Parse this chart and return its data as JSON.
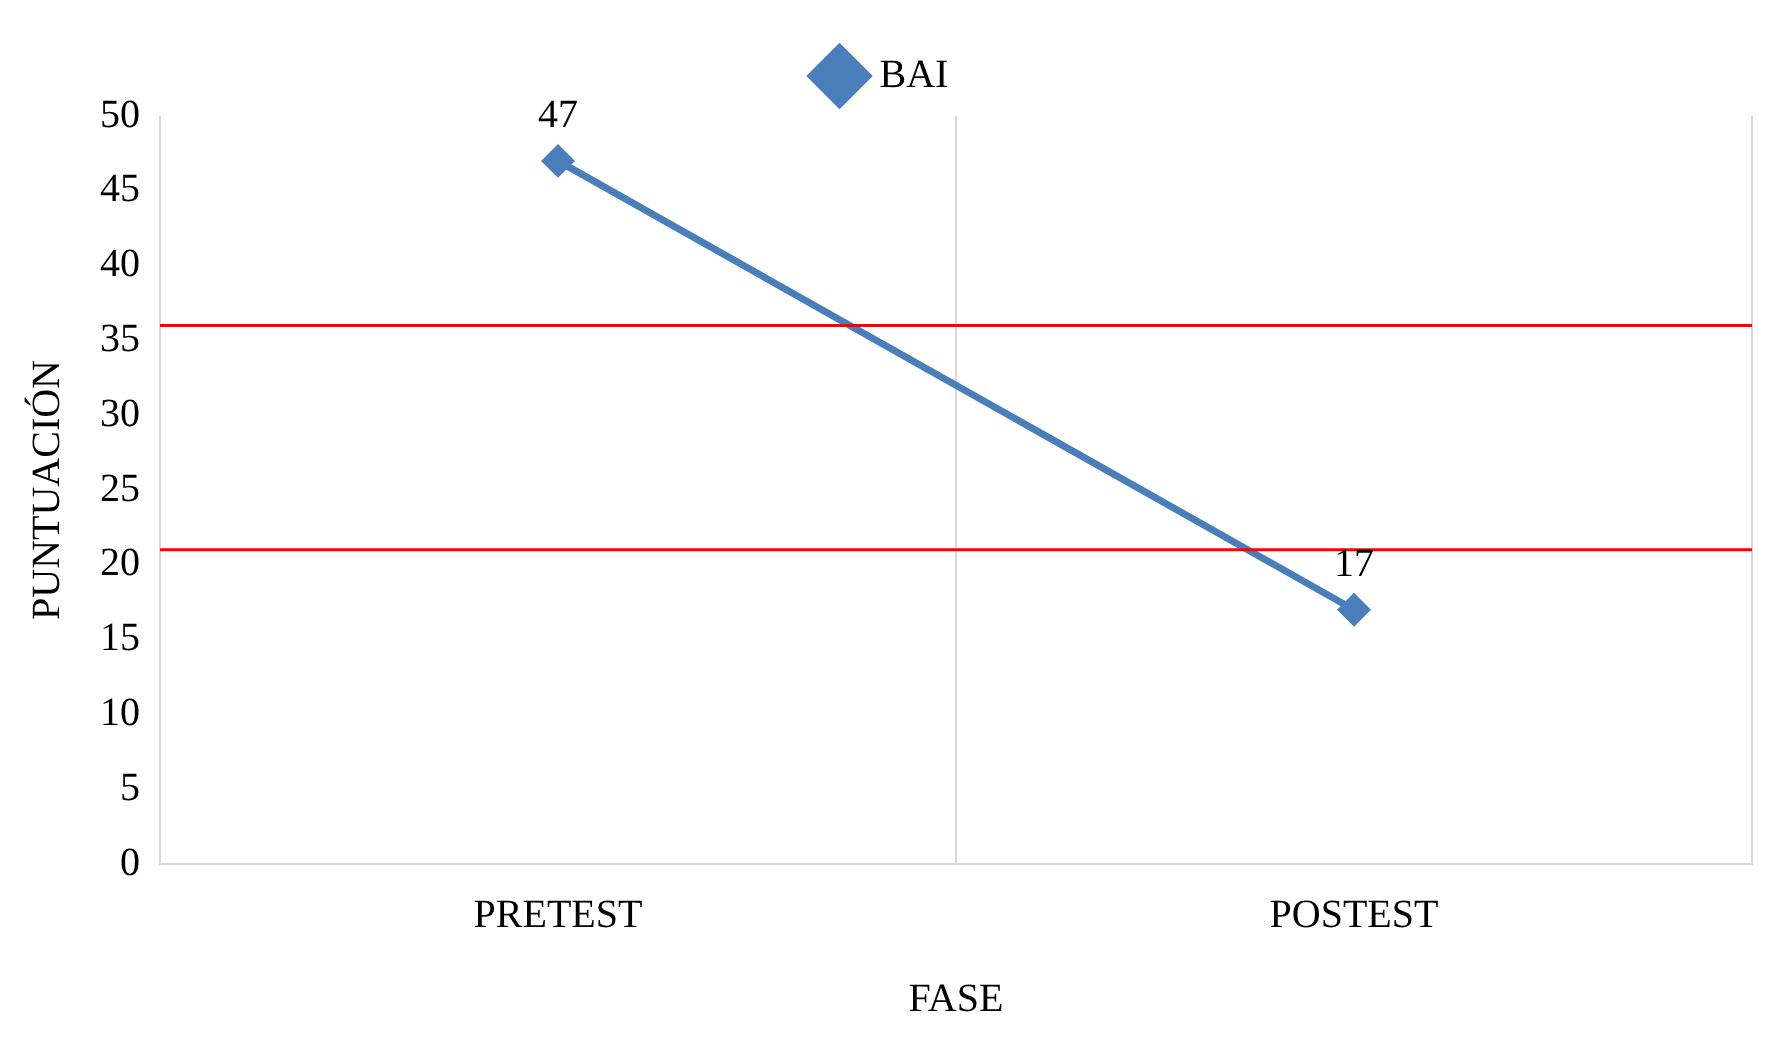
{
  "chart_data": {
    "type": "line",
    "xlabel": "FASE",
    "ylabel": "PUNTUACIÓN",
    "categories": [
      "PRETEST",
      "POSTEST"
    ],
    "series": [
      {
        "name": "BAI",
        "color": "#4a7ebb",
        "values": [
          47,
          17
        ]
      }
    ],
    "ylim": [
      0,
      50
    ],
    "yticks": [
      0,
      5,
      10,
      15,
      20,
      25,
      30,
      35,
      40,
      45,
      50
    ],
    "ref_lines": [
      {
        "axis": "y",
        "value": 36,
        "color": "#ff0000"
      },
      {
        "axis": "y",
        "value": 21,
        "color": "#ff0000"
      }
    ],
    "grid": "x",
    "legend": "top",
    "marker": "diamond",
    "line_style": "solid",
    "data_labels": true
  }
}
